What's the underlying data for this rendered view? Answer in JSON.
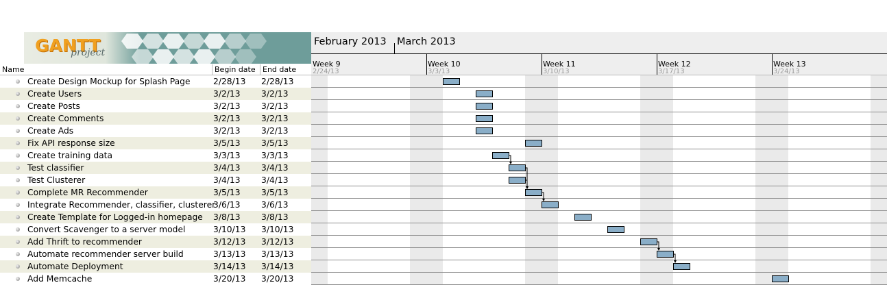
{
  "app": {
    "logo_text": "GANTT",
    "logo_subtext": "project"
  },
  "table": {
    "columns": {
      "name": "Name",
      "begin": "Begin date",
      "end": "End date"
    },
    "tasks": [
      {
        "name": "Create Design Mockup for Splash Page",
        "begin": "2/28/13",
        "end": "2/28/13"
      },
      {
        "name": "Create Users",
        "begin": "3/2/13",
        "end": "3/2/13"
      },
      {
        "name": "Create Posts",
        "begin": "3/2/13",
        "end": "3/2/13"
      },
      {
        "name": "Create Comments",
        "begin": "3/2/13",
        "end": "3/2/13"
      },
      {
        "name": "Create Ads",
        "begin": "3/2/13",
        "end": "3/2/13"
      },
      {
        "name": "Fix API response size",
        "begin": "3/5/13",
        "end": "3/5/13"
      },
      {
        "name": "Create training data",
        "begin": "3/3/13",
        "end": "3/3/13"
      },
      {
        "name": "Test classifier",
        "begin": "3/4/13",
        "end": "3/4/13"
      },
      {
        "name": "Test Clusterer",
        "begin": "3/4/13",
        "end": "3/4/13"
      },
      {
        "name": "Complete MR Recommender",
        "begin": "3/5/13",
        "end": "3/5/13"
      },
      {
        "name": "Integrate Recommender, classifier, clusterer",
        "begin": "3/6/13",
        "end": "3/6/13"
      },
      {
        "name": "Create Template for Logged-in homepage",
        "begin": "3/8/13",
        "end": "3/8/13"
      },
      {
        "name": "Convert Scavenger to a server model",
        "begin": "3/10/13",
        "end": "3/10/13"
      },
      {
        "name": "Add Thrift to recommender",
        "begin": "3/12/13",
        "end": "3/12/13"
      },
      {
        "name": "Automate recommender server build",
        "begin": "3/13/13",
        "end": "3/13/13"
      },
      {
        "name": "Automate Deployment",
        "begin": "3/14/13",
        "end": "3/14/13"
      },
      {
        "name": "Add Memcache",
        "begin": "3/20/13",
        "end": "3/20/13"
      }
    ]
  },
  "chart": {
    "months": [
      "February 2013",
      "March 2013"
    ],
    "weeks": [
      {
        "label": "Week 9",
        "date": "2/24/13"
      },
      {
        "label": "Week 10",
        "date": "3/3/13"
      },
      {
        "label": "Week 11",
        "date": "3/10/13"
      },
      {
        "label": "Week 12",
        "date": "3/17/13"
      },
      {
        "label": "Week 13",
        "date": "3/24/13"
      }
    ],
    "bar_color": "#8aaec8",
    "dependencies": [
      [
        6,
        7
      ],
      [
        7,
        9
      ],
      [
        8,
        9
      ],
      [
        9,
        10
      ],
      [
        13,
        14
      ],
      [
        14,
        15
      ]
    ]
  }
}
